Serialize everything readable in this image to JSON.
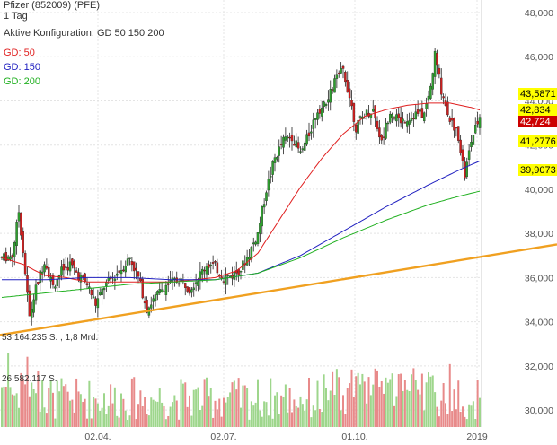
{
  "header": {
    "title": "Pfizer (852009) (PFE)",
    "interval": "1 Tag",
    "config": "Aktive Konfiguration: GD 50 150 200"
  },
  "legend": [
    {
      "label": "GD: 50",
      "color": "#e02020"
    },
    {
      "label": "GD: 150",
      "color": "#2020c0"
    },
    {
      "label": "GD: 200",
      "color": "#20b020"
    }
  ],
  "volume_labels": {
    "max": "53.164.235 S. , 1,8 Mrd.",
    "mid": "26.582.117 S."
  },
  "chart_data": {
    "type": "candlestick",
    "title": "Pfizer (852009) (PFE)",
    "price_axis": {
      "min": 29.5,
      "max": 48.5,
      "ticks": [
        "48,000",
        "46,000",
        "44,000",
        "42,000",
        "40,000",
        "38,000",
        "36,000",
        "34,000",
        "32,000",
        "30,000"
      ]
    },
    "x_ticks": [
      "02.04.",
      "02.07.",
      "01.10.",
      "2019"
    ],
    "price_path": [
      [
        0,
        36.9
      ],
      [
        5,
        37.0
      ],
      [
        8,
        39.0
      ],
      [
        10,
        37.2
      ],
      [
        13,
        34.2
      ],
      [
        16,
        35.5
      ],
      [
        20,
        36.8
      ],
      [
        24,
        35.6
      ],
      [
        28,
        36.3
      ],
      [
        32,
        36.6
      ],
      [
        36,
        36.1
      ],
      [
        40,
        35.7
      ],
      [
        44,
        34.8
      ],
      [
        48,
        35.6
      ],
      [
        52,
        36.0
      ],
      [
        56,
        36.4
      ],
      [
        60,
        36.9
      ],
      [
        64,
        36.0
      ],
      [
        68,
        34.6
      ],
      [
        72,
        35.1
      ],
      [
        76,
        35.6
      ],
      [
        80,
        35.8
      ],
      [
        84,
        35.9
      ],
      [
        88,
        35.5
      ],
      [
        92,
        36.0
      ],
      [
        96,
        36.6
      ],
      [
        100,
        36.5
      ],
      [
        104,
        36.0
      ],
      [
        108,
        36.1
      ],
      [
        112,
        36.4
      ],
      [
        116,
        37.1
      ],
      [
        120,
        38.0
      ],
      [
        124,
        40.0
      ],
      [
        128,
        41.4
      ],
      [
        132,
        42.2
      ],
      [
        136,
        42.4
      ],
      [
        140,
        41.6
      ],
      [
        144,
        42.5
      ],
      [
        148,
        43.6
      ],
      [
        152,
        43.8
      ],
      [
        156,
        44.9
      ],
      [
        160,
        45.4
      ],
      [
        163,
        44.2
      ],
      [
        166,
        42.8
      ],
      [
        170,
        43.4
      ],
      [
        174,
        43.6
      ],
      [
        178,
        42.1
      ],
      [
        182,
        43.6
      ],
      [
        186,
        43.1
      ],
      [
        190,
        43.2
      ],
      [
        194,
        43.4
      ],
      [
        198,
        43.4
      ],
      [
        201,
        44.6
      ],
      [
        203,
        46.1
      ],
      [
        206,
        44.5
      ],
      [
        210,
        43.2
      ],
      [
        214,
        42.4
      ],
      [
        217,
        40.6
      ],
      [
        220,
        42.2
      ],
      [
        224,
        43.3
      ]
    ],
    "moving_averages": [
      {
        "name": "GD: 50",
        "color": "#e02020",
        "path": [
          [
            0,
            36.9
          ],
          [
            10,
            36.6
          ],
          [
            20,
            36.1
          ],
          [
            30,
            36.0
          ],
          [
            40,
            35.8
          ],
          [
            50,
            35.8
          ],
          [
            60,
            35.8
          ],
          [
            70,
            35.8
          ],
          [
            80,
            35.8
          ],
          [
            90,
            35.9
          ],
          [
            100,
            36.0
          ],
          [
            110,
            36.3
          ],
          [
            120,
            37.1
          ],
          [
            130,
            38.6
          ],
          [
            140,
            40.1
          ],
          [
            150,
            41.4
          ],
          [
            160,
            42.5
          ],
          [
            170,
            43.3
          ],
          [
            180,
            43.6
          ],
          [
            190,
            43.8
          ],
          [
            200,
            43.9
          ],
          [
            210,
            43.9
          ],
          [
            220,
            43.7
          ],
          [
            224,
            43.59
          ]
        ]
      },
      {
        "name": "GD: 150",
        "color": "#2020c0",
        "path": [
          [
            0,
            35.9
          ],
          [
            20,
            35.9
          ],
          [
            40,
            36.0
          ],
          [
            60,
            36.0
          ],
          [
            80,
            35.9
          ],
          [
            100,
            35.9
          ],
          [
            120,
            36.2
          ],
          [
            140,
            37.0
          ],
          [
            160,
            38.1
          ],
          [
            180,
            39.2
          ],
          [
            200,
            40.2
          ],
          [
            215,
            40.9
          ],
          [
            224,
            41.28
          ]
        ]
      },
      {
        "name": "GD: 200",
        "color": "#20b020",
        "path": [
          [
            0,
            35.1
          ],
          [
            20,
            35.3
          ],
          [
            40,
            35.5
          ],
          [
            60,
            35.7
          ],
          [
            80,
            35.8
          ],
          [
            100,
            35.9
          ],
          [
            120,
            36.2
          ],
          [
            140,
            36.9
          ],
          [
            160,
            37.8
          ],
          [
            180,
            38.6
          ],
          [
            200,
            39.3
          ],
          [
            215,
            39.7
          ],
          [
            224,
            39.91
          ]
        ]
      }
    ],
    "trendline": {
      "color": "#f0a020",
      "from": [
        0,
        33.4
      ],
      "to": [
        262,
        37.5
      ]
    },
    "value_badges": [
      {
        "value": "43,5871",
        "bg": "#ffff00",
        "fg": "#000000"
      },
      {
        "value": "42,834",
        "bg": "#ffff00",
        "fg": "#000000"
      },
      {
        "value": "42,724",
        "bg": "#cc0000",
        "fg": "#ffffff"
      },
      {
        "value": "41,2776",
        "bg": "#ffff00",
        "fg": "#000000"
      },
      {
        "value": "39,9073",
        "bg": "#ffff00",
        "fg": "#000000"
      }
    ],
    "grid": true
  }
}
